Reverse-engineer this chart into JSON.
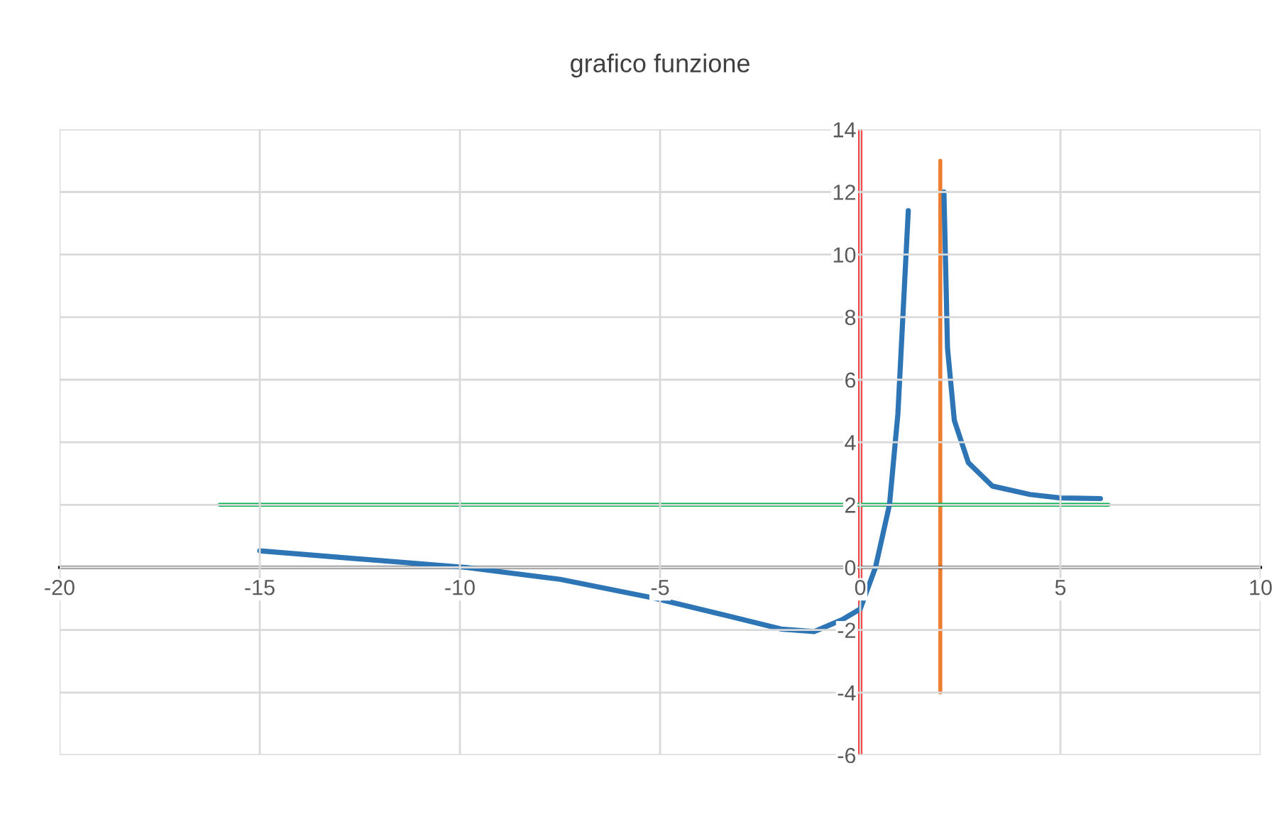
{
  "chart_data": {
    "type": "line",
    "title": "grafico funzione",
    "xlim": [
      -20,
      10
    ],
    "xticks": [
      -20,
      -15,
      -10,
      -5,
      0,
      5,
      10
    ],
    "ylim": [
      -6,
      14
    ],
    "yticks": [
      -6,
      -4,
      -2,
      0,
      2,
      4,
      6,
      8,
      10,
      12,
      14
    ],
    "grid": true,
    "series": [
      {
        "color": "#2e75b6",
        "x": [
          -15,
          -12.5,
          -9.85,
          -7.5,
          -5.15,
          -3.4,
          -1.98,
          -1.15,
          -0.45,
          0,
          0.38,
          0.73,
          0.94,
          1.06,
          1.2,
          null,
          2.09,
          2.18,
          2.35,
          2.7,
          3.3,
          4.24,
          5,
          6
        ],
        "values": [
          0.53,
          0.27,
          0,
          -0.38,
          -0.98,
          -1.52,
          -1.97,
          -2.05,
          -1.67,
          -1.33,
          0,
          2,
          4.9,
          7.9,
          11.4,
          null,
          12,
          7,
          4.7,
          3.35,
          2.6,
          2.33,
          2.22,
          2.2
        ]
      },
      {
        "color": "#ff0000",
        "x": [
          0,
          0
        ],
        "values": [
          -6,
          14
        ]
      },
      {
        "color": "#ed7d31",
        "x": [
          2,
          2
        ],
        "values": [
          -4,
          13
        ]
      },
      {
        "color": "#00b050",
        "x": [
          -16,
          6.2
        ],
        "values": [
          2,
          2
        ]
      }
    ]
  }
}
